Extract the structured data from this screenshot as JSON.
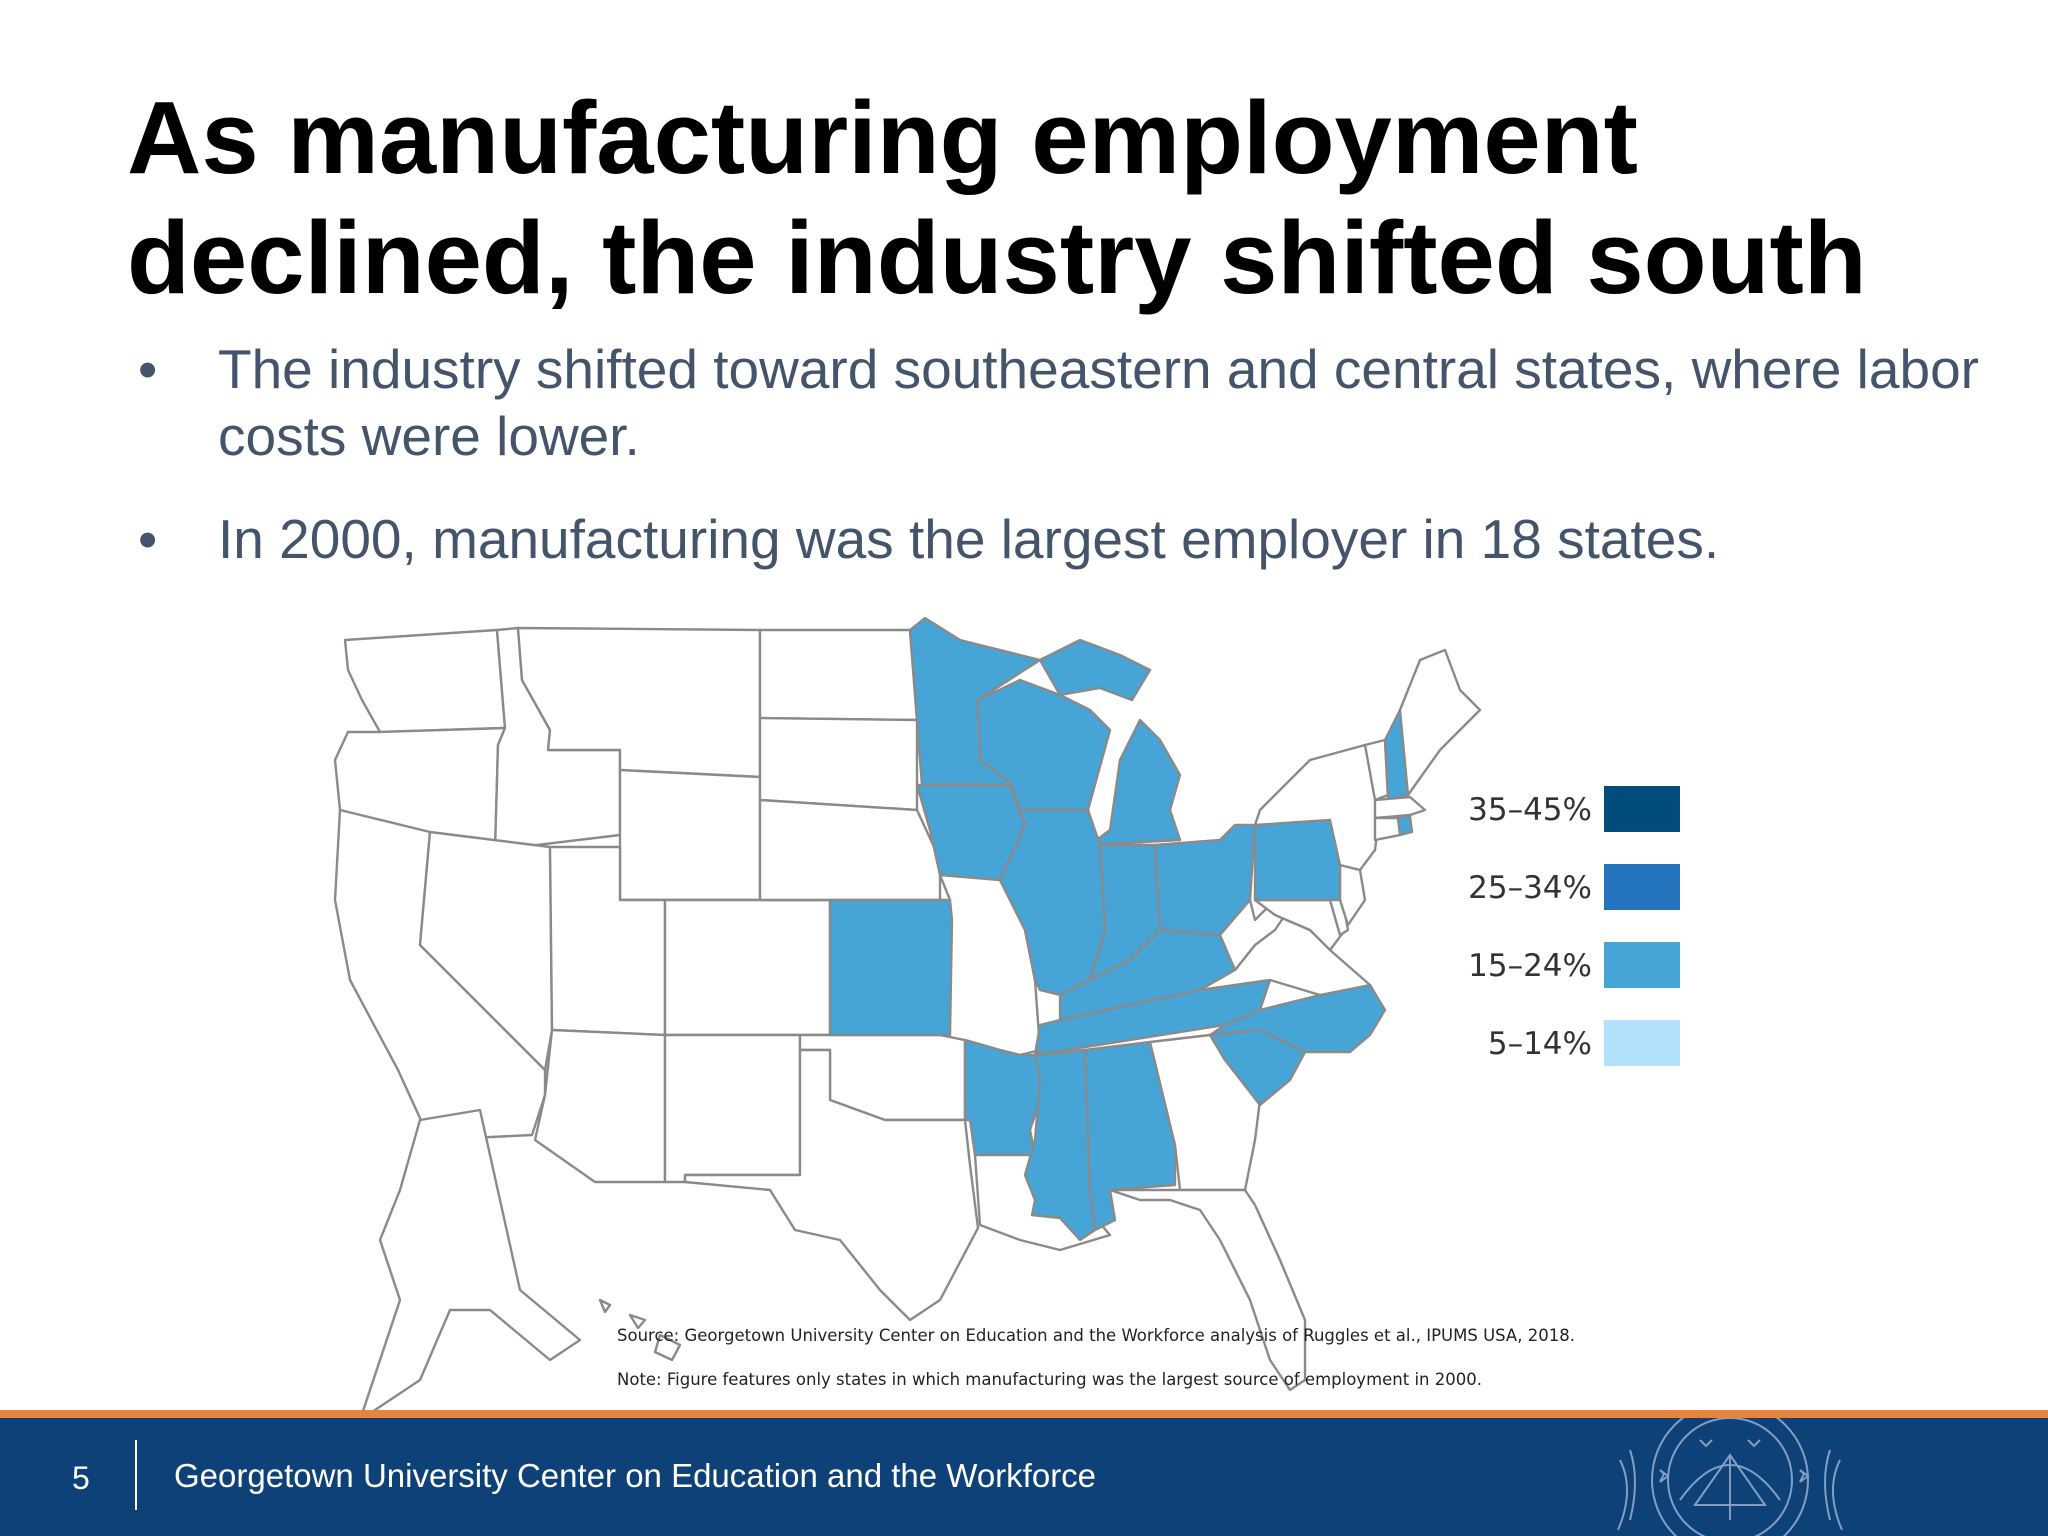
{
  "slide": {
    "title_lines": [
      "As manufacturing employment",
      "declined, the industry shifted south"
    ],
    "bullets": [
      {
        "marker": "•",
        "text": "The industry shifted toward southeastern and central states, where labor costs were lower."
      },
      {
        "marker": "•",
        "text": "In 2000, manufacturing was the largest employer in 18 states."
      }
    ]
  },
  "map": {
    "type": "choropleth",
    "region": "United States",
    "legend": [
      {
        "label": "35–45%",
        "color": "#004c7a"
      },
      {
        "label": "25–34%",
        "color": "#2474be"
      },
      {
        "label": "15–24%",
        "color": "#47a4d6"
      },
      {
        "label": "5–14%",
        "color": "#b2e2fb"
      }
    ],
    "highlighted_states": [
      "Minnesota",
      "Wisconsin",
      "Iowa",
      "Michigan",
      "Illinois",
      "Indiana",
      "Ohio",
      "Pennsylvania",
      "Kansas",
      "Kentucky",
      "Tennessee",
      "Arkansas",
      "Mississippi",
      "Alabama",
      "North Carolina",
      "South Carolina",
      "New Hampshire",
      "Rhode Island"
    ],
    "highlight_category": "15–24%",
    "source": "Source: Georgetown University Center on Education and the Workforce analysis of Ruggles et al., IPUMS USA, 2018.",
    "note": "Note: Figure features only states in which manufacturing was the largest source of employment in 2000."
  },
  "footer": {
    "page_number": "5",
    "org_name": "Georgetown University Center on Education and the Workforce",
    "bar_color": "#0e4178",
    "rule_color": "#e8833a"
  }
}
